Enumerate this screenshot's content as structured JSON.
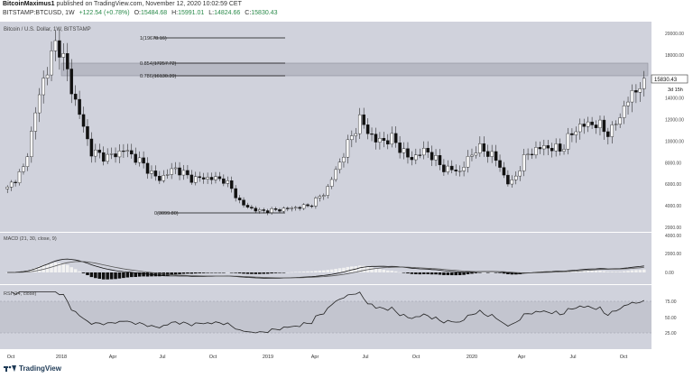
{
  "header": {
    "author": "BitcoinMaximus1",
    "published_text": "published on TradingView.com, November 12, 2020 10:02:59 CET",
    "symbol": "BITSTAMP:BTCUSD, 1W",
    "ohlc": {
      "change": "+122.54 (+0.78%)",
      "open_label": "O:",
      "open": "15484.68",
      "high_label": "H:",
      "high": "15991.01",
      "low_label": "L:",
      "low": "14824.66",
      "close_label": "C:",
      "close": "15830.43"
    }
  },
  "main_pane": {
    "legend": "Bitcoin / U.S. Dollar, 1W, BITSTAMP",
    "price_tag": "15830.43",
    "countdown": "3d 15h",
    "y_ticks": [
      "20000.00",
      "18000.00",
      "16000.00",
      "14000.00",
      "12000.00",
      "10000.00",
      "8000.00",
      "6000.00",
      "4000.00",
      "2000.00"
    ],
    "fib_levels": [
      {
        "label": "1(19678.16)"
      },
      {
        "label": "0.854(17257.72)"
      },
      {
        "label": "0.786(16130.39)"
      },
      {
        "label": "0(3099.80)"
      }
    ]
  },
  "macd_pane": {
    "legend": "MACD (21, 30, close, 9)",
    "y_ticks": [
      "4000.00",
      "2000.00",
      "0.00"
    ]
  },
  "rsi_pane": {
    "legend": "RSI (14, close)",
    "y_ticks": [
      "75.00",
      "50.00",
      "25.00"
    ]
  },
  "x_axis": {
    "labels": [
      "Oct",
      "2018",
      "Apr",
      "Jul",
      "Oct",
      "2019",
      "Apr",
      "Jul",
      "Oct",
      "2020",
      "Apr",
      "Jul",
      "Oct"
    ]
  },
  "footer": {
    "brand": "TradingView"
  },
  "colors": {
    "pane_bg": "#d0d2dc",
    "candle": "#111111",
    "fib_zone": "#b7b9c4"
  },
  "chart_data": {
    "type": "candlestick",
    "title": "Bitcoin / U.S. Dollar, 1W, BITSTAMP",
    "ylim": [
      2000,
      21000
    ],
    "x_labels": [
      "Oct",
      "2018",
      "Apr",
      "Jul",
      "Oct",
      "2019",
      "Apr",
      "Jul",
      "Oct",
      "2020",
      "Apr",
      "Jul",
      "Oct"
    ],
    "close_path": [
      [
        "2017-10",
        5600
      ],
      [
        "2017-11",
        7500
      ],
      [
        "2017-12",
        15000
      ],
      [
        "2017-12b",
        19500
      ],
      [
        "2018-01",
        14000
      ],
      [
        "2018-02",
        9000
      ],
      [
        "2018-03",
        8500
      ],
      [
        "2018-04",
        9200
      ],
      [
        "2018-05",
        8000
      ],
      [
        "2018-06",
        6400
      ],
      [
        "2018-07",
        7500
      ],
      [
        "2018-08",
        6500
      ],
      [
        "2018-09",
        6600
      ],
      [
        "2018-10",
        6400
      ],
      [
        "2018-11",
        4100
      ],
      [
        "2018-12",
        3500
      ],
      [
        "2019-01",
        3600
      ],
      [
        "2019-02",
        3800
      ],
      [
        "2019-03",
        4000
      ],
      [
        "2019-04",
        5300
      ],
      [
        "2019-05",
        8600
      ],
      [
        "2019-06",
        12000
      ],
      [
        "2019-07",
        10000
      ],
      [
        "2019-08",
        10200
      ],
      [
        "2019-09",
        8300
      ],
      [
        "2019-10",
        9200
      ],
      [
        "2019-11",
        7500
      ],
      [
        "2019-12",
        7200
      ],
      [
        "2020-01",
        9400
      ],
      [
        "2020-02",
        8700
      ],
      [
        "2020-03",
        5800
      ],
      [
        "2020-04",
        8800
      ],
      [
        "2020-05",
        9500
      ],
      [
        "2020-06",
        9200
      ],
      [
        "2020-07",
        11300
      ],
      [
        "2020-08",
        11700
      ],
      [
        "2020-09",
        10700
      ],
      [
        "2020-10",
        13700
      ],
      [
        "2020-11",
        15830
      ]
    ]
  }
}
